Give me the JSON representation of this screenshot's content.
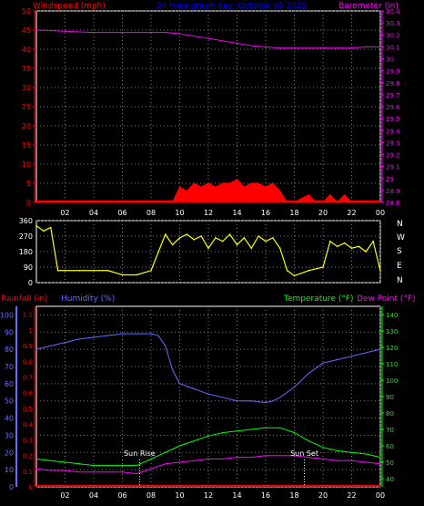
{
  "colors": {
    "background": "#000000",
    "grid": "#808080",
    "tick_text": "#ffffff",
    "windspeed": "#ff0000",
    "windspeed_avg": "#ffffff",
    "windgust": "#00ff00",
    "barometer": "#ff00ff",
    "direction": "#ffff00",
    "rainfall": "#ff0000",
    "humidity": "#6a6aff",
    "temperature": "#00ff00",
    "dewpoint": "#ff00ff",
    "axis_left_top": "#ff0000",
    "axis_left_rain": "#ff0000",
    "axis_left_hum": "#6a6aff",
    "axis_right_top": "#ff00ff",
    "axis_right_temp": "#00ff00"
  },
  "header": {
    "wind_label": "Windspeed (mph)",
    "title": "24 hour graph day, October 05 2025",
    "baro_label": "Barometer (in)"
  },
  "bottom_header": {
    "rain_label": "Rainfall (in)",
    "humidity_label": "Humidity (%)",
    "temp_label": "Temperature (°F)",
    "dew_label": "Dew Point (°F)"
  },
  "compass": [
    "N",
    "W",
    "S",
    "E",
    "N"
  ],
  "annotations": {
    "sunrise": "Sun Rise",
    "sunset": "Sun Set"
  },
  "chart_data": [
    {
      "type": "line",
      "panel": "wind-barometer",
      "x_ticks": [
        "02",
        "04",
        "06",
        "08",
        "10",
        "12",
        "14",
        "16",
        "18",
        "20",
        "22",
        "00"
      ],
      "y_left": {
        "label": "Windspeed (mph)",
        "ticks": [
          0,
          5,
          10,
          15,
          20,
          25,
          30,
          35,
          40,
          45,
          50
        ],
        "range": [
          0,
          50
        ]
      },
      "y_right": {
        "label": "Barometer (in)",
        "ticks": [
          "28.8",
          "28.9",
          "29",
          "29.1",
          "29.2",
          "29.3",
          "29.4",
          "29.5",
          "29.6",
          "29.7",
          "29.8",
          "29.9",
          "30",
          "30.1",
          "30.2",
          "30.3",
          "30.4"
        ],
        "range": [
          28.8,
          30.4
        ]
      },
      "series": [
        {
          "name": "Barometer (in)",
          "axis": "right",
          "x": [
            0,
            2,
            4,
            6,
            8,
            9,
            10,
            11,
            12,
            13,
            14,
            15,
            16,
            17,
            18,
            19,
            20,
            21,
            22,
            23,
            24
          ],
          "y": [
            30.24,
            30.23,
            30.22,
            30.22,
            30.22,
            30.22,
            30.21,
            30.19,
            30.17,
            30.15,
            30.13,
            30.11,
            30.1,
            30.09,
            30.09,
            30.09,
            30.09,
            30.09,
            30.09,
            30.1,
            30.1
          ]
        },
        {
          "name": "Windspeed (mph)",
          "axis": "left",
          "x": [
            0,
            9,
            9.5,
            10,
            10.5,
            11,
            11.5,
            12,
            12.5,
            13,
            13.5,
            14,
            14.5,
            15,
            15.5,
            16,
            16.5,
            17,
            17.5,
            18,
            19,
            19.5,
            20,
            20.5,
            21,
            21.5,
            22,
            24
          ],
          "y": [
            0,
            0,
            0,
            4,
            3,
            5,
            4,
            5,
            4,
            5,
            5,
            6,
            4,
            5,
            5,
            4,
            5,
            3,
            0,
            0,
            2,
            0,
            0,
            2,
            0,
            2,
            0,
            0
          ]
        }
      ]
    },
    {
      "type": "line",
      "panel": "wind-direction",
      "y_left": {
        "ticks": [
          0,
          90,
          180,
          270,
          360
        ],
        "range": [
          0,
          360
        ]
      },
      "series": [
        {
          "name": "Wind direction",
          "x": [
            0,
            0.5,
            1,
            1.5,
            2,
            3,
            4,
            5,
            6,
            7,
            8,
            9,
            9.5,
            10,
            10.5,
            11,
            11.5,
            12,
            12.5,
            13,
            13.5,
            14,
            14.5,
            15,
            15.5,
            16,
            16.5,
            17,
            17.5,
            18,
            19,
            20,
            20.5,
            21,
            21.5,
            22,
            22.5,
            23,
            23.5,
            24
          ],
          "y": [
            330,
            300,
            320,
            70,
            70,
            70,
            70,
            70,
            45,
            45,
            70,
            280,
            220,
            260,
            280,
            250,
            270,
            200,
            260,
            240,
            280,
            220,
            260,
            200,
            270,
            240,
            260,
            200,
            70,
            40,
            70,
            90,
            240,
            210,
            230,
            200,
            210,
            180,
            240,
            70
          ]
        }
      ]
    },
    {
      "type": "line",
      "panel": "rain-humidity-temperature",
      "x_ticks": [
        "02",
        "04",
        "06",
        "08",
        "10",
        "12",
        "14",
        "16",
        "18",
        "20",
        "22",
        "00"
      ],
      "y_left_rain": {
        "label": "Rainfall (in)",
        "ticks": [
          "0",
          "0.1",
          "0.2",
          "0.3",
          "0.4",
          "0.5",
          "0.6",
          "0.7",
          "0.8",
          "0.9",
          "1",
          "1.1"
        ],
        "range": [
          0,
          1.15
        ]
      },
      "y_left_humidity": {
        "label": "Humidity (%)",
        "ticks": [
          0,
          10,
          20,
          30,
          40,
          50,
          60,
          70,
          80,
          90,
          100
        ],
        "range": [
          0,
          105
        ]
      },
      "y_right": {
        "label": "Temperature (°F)",
        "ticks": [
          40,
          50,
          60,
          70,
          80,
          90,
          100,
          110,
          120,
          130,
          140
        ],
        "range": [
          35,
          145
        ]
      },
      "series": [
        {
          "name": "Humidity (%)",
          "axis": "humidity",
          "x": [
            0,
            1,
            2,
            3,
            4,
            5,
            6,
            7,
            8,
            8.5,
            9,
            9.5,
            10,
            11,
            12,
            13,
            14,
            15,
            16,
            16.5,
            17,
            18,
            19,
            20,
            21,
            22,
            23,
            24
          ],
          "y": [
            80,
            82,
            84,
            86,
            87,
            88,
            89,
            89,
            89,
            88,
            82,
            68,
            60,
            57,
            54,
            52,
            50,
            50,
            49,
            50,
            52,
            58,
            66,
            72,
            74,
            76,
            78,
            80
          ]
        },
        {
          "name": "Temperature (°F)",
          "axis": "temperature",
          "x": [
            0,
            1,
            2,
            3,
            4,
            5,
            6,
            7,
            8,
            9,
            10,
            11,
            12,
            13,
            14,
            15,
            16,
            17,
            18,
            19,
            20,
            21,
            22,
            23,
            24
          ],
          "y": [
            52,
            51,
            50,
            49,
            48,
            48,
            48,
            48,
            52,
            56,
            60,
            63,
            66,
            68,
            69,
            70,
            71,
            71,
            68,
            63,
            59,
            57,
            56,
            55,
            53
          ]
        },
        {
          "name": "Dew Point (°F)",
          "axis": "temperature",
          "x": [
            0,
            1,
            2,
            3,
            4,
            5,
            6,
            7,
            8,
            9,
            10,
            11,
            12,
            13,
            14,
            15,
            16,
            17,
            18,
            19,
            20,
            21,
            22,
            23,
            24
          ],
          "y": [
            46,
            45,
            45,
            44,
            44,
            44,
            44,
            43,
            46,
            49,
            50,
            51,
            52,
            52,
            53,
            53,
            54,
            54,
            54,
            53,
            52,
            51,
            51,
            50,
            49
          ]
        },
        {
          "name": "Rainfall (in)",
          "axis": "rain",
          "x": [
            0,
            24
          ],
          "y": [
            0,
            0
          ]
        }
      ]
    }
  ]
}
